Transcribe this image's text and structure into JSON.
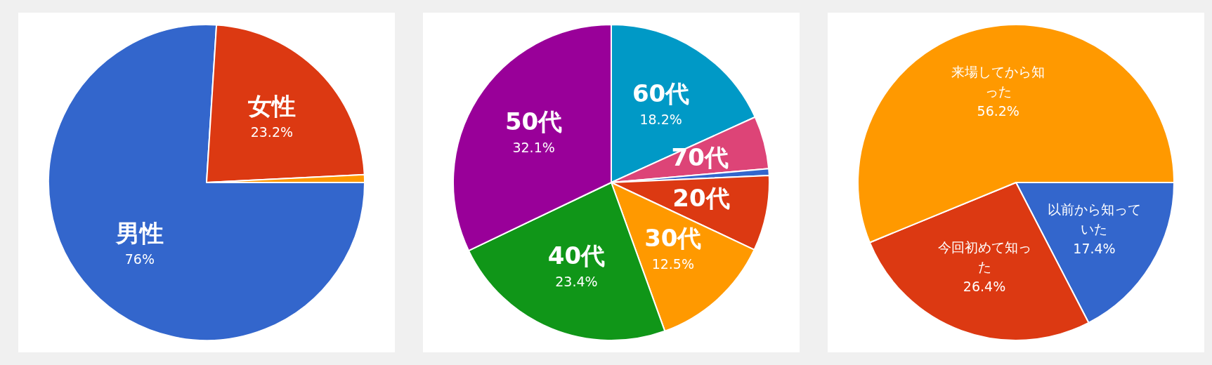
{
  "chart_data": [
    {
      "type": "pie",
      "categories": [
        "男性",
        "女性",
        null
      ],
      "values": [
        76,
        23.2,
        0.8
      ],
      "colors": [
        "#3366cc",
        "#dc3912",
        "#ff9900"
      ],
      "value_labels": [
        "76%",
        "23.2%",
        null
      ],
      "legend": false
    },
    {
      "type": "pie",
      "categories": [
        "60代",
        "70代",
        null,
        "20代",
        "30代",
        "40代",
        "50代"
      ],
      "values": [
        18.2,
        5.4,
        0.7,
        7.7,
        12.5,
        23.4,
        32.1
      ],
      "colors": [
        "#0099c6",
        "#dd4477",
        "#3366cc",
        "#dc3912",
        "#ff9900",
        "#109618",
        "#990099"
      ],
      "value_labels": [
        "18.2%",
        null,
        null,
        null,
        "12.5%",
        "23.4%",
        "32.1%"
      ],
      "legend": false
    },
    {
      "type": "pie",
      "categories": [
        "以前から知っていた",
        "今回初めて知った",
        "来場してから知った"
      ],
      "values": [
        17.4,
        26.4,
        56.2
      ],
      "colors": [
        "#3366cc",
        "#dc3912",
        "#ff9900"
      ],
      "value_labels": [
        "17.4%",
        "26.4%",
        "56.2%"
      ],
      "legend": false
    }
  ]
}
